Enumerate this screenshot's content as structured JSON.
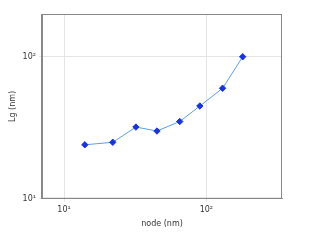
{
  "chart_data": {
    "type": "line",
    "x_label": "node (nm)",
    "y_label": "Lg (nm)",
    "log": true,
    "grid": true,
    "xlim": [
      7,
      340
    ],
    "ylim": [
      10,
      200
    ],
    "xticks": [
      {
        "value": 10,
        "label": "10¹"
      },
      {
        "value": 100,
        "label": "10²"
      }
    ],
    "yticks": [
      {
        "value": 10,
        "label": "10¹"
      },
      {
        "value": 100,
        "label": "10²"
      }
    ],
    "series": [
      {
        "name": "Lg",
        "color": "#1a35d6",
        "marker": "diamond",
        "line_style": "solid",
        "x": [
          14,
          22,
          32,
          45,
          65,
          90,
          130,
          180
        ],
        "values": [
          24,
          25,
          32,
          30,
          35,
          45,
          60,
          100
        ]
      }
    ]
  }
}
